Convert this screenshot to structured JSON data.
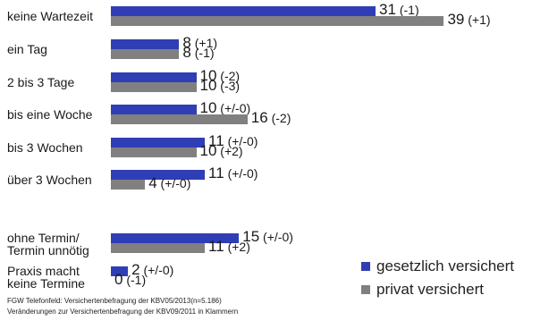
{
  "chart_data": {
    "type": "bar",
    "orientation": "horizontal",
    "categories": [
      "keine Wartezeit",
      "ein Tag",
      "2 bis 3 Tage",
      "bis eine Woche",
      "bis 3 Wochen",
      "über 3 Wochen",
      "ohne Termin/\nTermin unnötig",
      "Praxis macht\nkeine Termine"
    ],
    "series": [
      {
        "name": "gesetzlich versichert",
        "color": "#2f3eb5",
        "values": [
          31,
          8,
          10,
          10,
          11,
          11,
          15,
          2
        ],
        "changes": [
          "(-1)",
          "(+1)",
          "(-2)",
          "(+/-0)",
          "(+/-0)",
          "(+/-0)",
          "(+/-0)",
          "(+/-0)"
        ]
      },
      {
        "name": "privat versichert",
        "color": "#808080",
        "values": [
          39,
          8,
          10,
          16,
          10,
          4,
          11,
          0
        ],
        "changes": [
          "(+1)",
          "(-1)",
          "(-3)",
          "(-2)",
          "(+2)",
          "(+/-0)",
          "(+2)",
          "(-1)"
        ]
      }
    ],
    "legend_position": "bottom-right",
    "grid": false
  },
  "footnotes": [
    "FGW Telefonfeld: Versichertenbefragung der KBV05/2013(n=5.186)",
    "Veränderungen zur Versichertenbefragung der KBV09/2011 in Klammern"
  ]
}
